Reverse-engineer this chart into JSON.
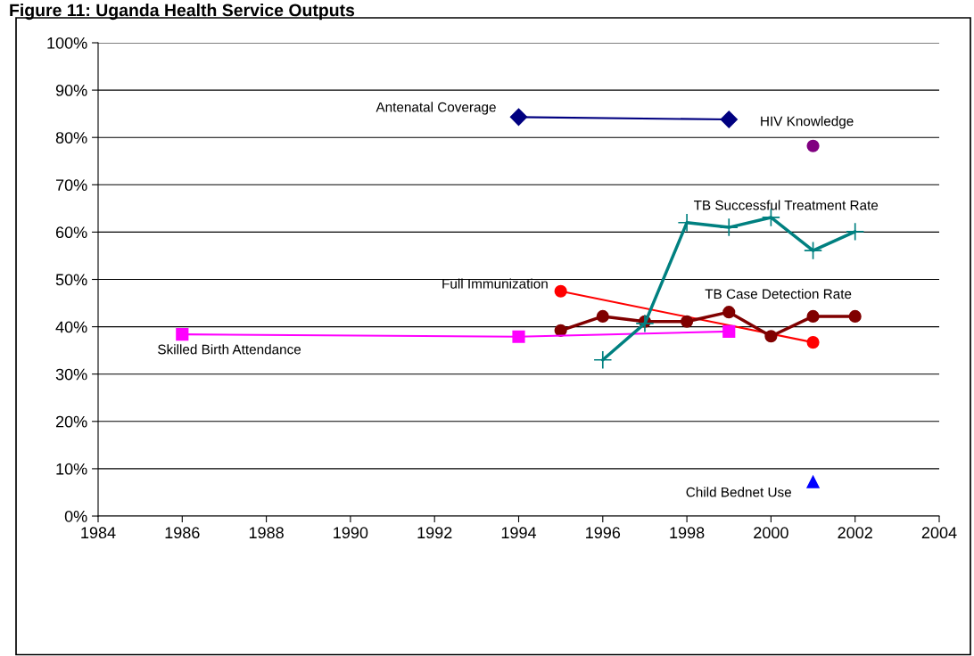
{
  "chart_data": {
    "type": "line",
    "title": "Figure 11: Uganda Health Service Outputs",
    "xlim": [
      1984,
      2004
    ],
    "xticks": [
      1984,
      1986,
      1988,
      1990,
      1992,
      1994,
      1996,
      1998,
      2000,
      2002,
      2004
    ],
    "ylim": [
      0,
      100
    ],
    "yticks": [
      {
        "value": 0,
        "label": "0%"
      },
      {
        "value": 10,
        "label": "10%"
      },
      {
        "value": 20,
        "label": "20%"
      },
      {
        "value": 30,
        "label": "30%"
      },
      {
        "value": 40,
        "label": "40%"
      },
      {
        "value": 50,
        "label": "50%"
      },
      {
        "value": 60,
        "label": "60%"
      },
      {
        "value": 70,
        "label": "70%"
      },
      {
        "value": 80,
        "label": "80%"
      },
      {
        "value": 90,
        "label": "90%"
      },
      {
        "value": 100,
        "label": "100%"
      }
    ],
    "grid": "y",
    "legend": false,
    "series": [
      {
        "name": "Antenatal Coverage",
        "color": "#000080",
        "marker": "diamond",
        "x": [
          1994,
          1999
        ],
        "values": [
          84.3,
          83.8
        ]
      },
      {
        "name": "HIV Knowledge",
        "color": "#800080",
        "marker": "circle",
        "x": [
          2001
        ],
        "values": [
          78.2
        ]
      },
      {
        "name": "TB Successful Treatment Rate",
        "color": "#008080",
        "marker": "cross",
        "x": [
          1996,
          1997,
          1998,
          1999,
          2000,
          2001,
          2002
        ],
        "values": [
          33.0,
          40.7,
          62.0,
          61.0,
          63.1,
          56.1,
          60.1
        ]
      },
      {
        "name": "Full Immunization",
        "color": "#ff0000",
        "marker": "circle",
        "x": [
          1995,
          2001
        ],
        "values": [
          47.5,
          36.7
        ]
      },
      {
        "name": "TB Case Detection Rate",
        "color": "#800000",
        "marker": "circle",
        "x": [
          1995,
          1996,
          1997,
          1998,
          1999,
          2000,
          2001,
          2002
        ],
        "values": [
          39.2,
          42.2,
          41.1,
          41.1,
          43.1,
          38.0,
          42.2,
          42.2
        ]
      },
      {
        "name": "Skilled Birth Attendance",
        "color": "#ff00ff",
        "marker": "square",
        "x": [
          1986,
          1994,
          1999
        ],
        "values": [
          38.4,
          37.9,
          39.0
        ]
      },
      {
        "name": "Child Bednet Use",
        "color": "#0000ff",
        "marker": "triangle",
        "x": [
          2001
        ],
        "values": [
          7.2
        ]
      }
    ]
  }
}
